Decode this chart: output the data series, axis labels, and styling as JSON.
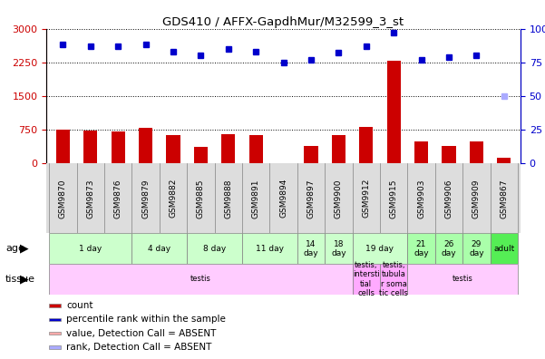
{
  "title": "GDS410 / AFFX-GapdhMur/M32599_3_st",
  "samples": [
    "GSM9870",
    "GSM9873",
    "GSM9876",
    "GSM9879",
    "GSM9882",
    "GSM9885",
    "GSM9888",
    "GSM9891",
    "GSM9894",
    "GSM9897",
    "GSM9900",
    "GSM9912",
    "GSM9915",
    "GSM9903",
    "GSM9906",
    "GSM9909",
    "GSM9867"
  ],
  "count_values": [
    760,
    740,
    720,
    800,
    620,
    370,
    660,
    630,
    0,
    390,
    620,
    820,
    2290,
    490,
    380,
    490,
    130
  ],
  "count_absent": [
    false,
    false,
    false,
    false,
    false,
    false,
    false,
    false,
    true,
    false,
    false,
    false,
    false,
    false,
    false,
    false,
    false
  ],
  "percentile_values": [
    88,
    87,
    87,
    88,
    83,
    80,
    85,
    83,
    75,
    77,
    82,
    87,
    97,
    77,
    79,
    80,
    50
  ],
  "percentile_absent": [
    false,
    false,
    false,
    false,
    false,
    false,
    false,
    false,
    false,
    false,
    false,
    false,
    false,
    false,
    false,
    false,
    true
  ],
  "ylim_left": [
    0,
    3000
  ],
  "ylim_right": [
    0,
    100
  ],
  "yticks_left": [
    0,
    750,
    1500,
    2250,
    3000
  ],
  "yticks_right": [
    0,
    25,
    50,
    75,
    100
  ],
  "age_groups": [
    {
      "label": "1 day",
      "start": 0,
      "end": 3,
      "color": "#ccffcc"
    },
    {
      "label": "4 day",
      "start": 3,
      "end": 5,
      "color": "#ccffcc"
    },
    {
      "label": "8 day",
      "start": 5,
      "end": 7,
      "color": "#ccffcc"
    },
    {
      "label": "11 day",
      "start": 7,
      "end": 9,
      "color": "#ccffcc"
    },
    {
      "label": "14\nday",
      "start": 9,
      "end": 10,
      "color": "#ccffcc"
    },
    {
      "label": "18\nday",
      "start": 10,
      "end": 11,
      "color": "#ccffcc"
    },
    {
      "label": "19 day",
      "start": 11,
      "end": 13,
      "color": "#ccffcc"
    },
    {
      "label": "21\nday",
      "start": 13,
      "end": 14,
      "color": "#aaffaa"
    },
    {
      "label": "26\nday",
      "start": 14,
      "end": 15,
      "color": "#aaffaa"
    },
    {
      "label": "29\nday",
      "start": 15,
      "end": 16,
      "color": "#aaffaa"
    },
    {
      "label": "adult",
      "start": 16,
      "end": 17,
      "color": "#55ee55"
    }
  ],
  "tissue_groups": [
    {
      "label": "testis",
      "start": 0,
      "end": 11,
      "color": "#ffccff"
    },
    {
      "label": "testis,\nintersti\ntial\ncells",
      "start": 11,
      "end": 12,
      "color": "#ffaaff"
    },
    {
      "label": "testis,\ntubula\nr soma\ntic cells",
      "start": 12,
      "end": 13,
      "color": "#ffaaff"
    },
    {
      "label": "testis",
      "start": 13,
      "end": 17,
      "color": "#ffccff"
    }
  ],
  "bar_color": "#cc0000",
  "bar_absent_color": "#ffaaaa",
  "dot_color": "#0000cc",
  "dot_absent_color": "#aaaaff",
  "left_axis_color": "#cc0000",
  "right_axis_color": "#0000cc",
  "background_color": "#ffffff",
  "grid_color": "#000000",
  "legend_items": [
    {
      "color": "#cc0000",
      "label": "count"
    },
    {
      "color": "#0000cc",
      "label": "percentile rank within the sample"
    },
    {
      "color": "#ffaaaa",
      "label": "value, Detection Call = ABSENT"
    },
    {
      "color": "#aaaaff",
      "label": "rank, Detection Call = ABSENT"
    }
  ]
}
